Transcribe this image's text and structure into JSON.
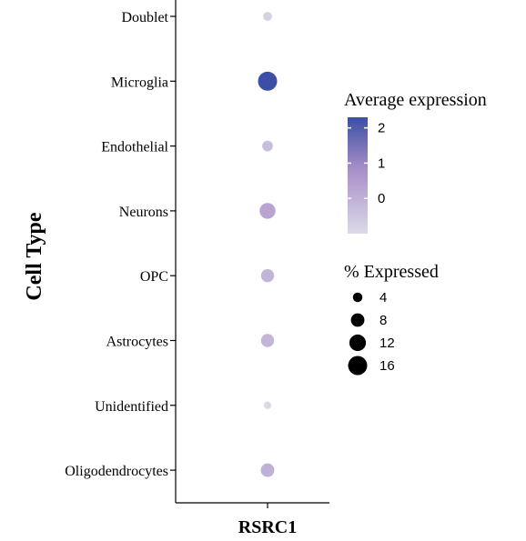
{
  "chart_data": {
    "type": "dot",
    "title": "",
    "xlabel": "RSRC1",
    "ylabel": "Cell Type",
    "x": [
      "RSRC1"
    ],
    "categories": [
      "Doublet",
      "Microglia",
      "Endothelial",
      "Neurons",
      "OPC",
      "Astrocytes",
      "Unidentified",
      "Oligodendrocytes"
    ],
    "series": [
      {
        "gene": "RSRC1",
        "percent_expressed": [
          3.5,
          16,
          5,
          11,
          7.5,
          7.5,
          2.5,
          8
        ],
        "average_expression": [
          -0.8,
          2.3,
          -0.3,
          0.3,
          -0.1,
          -0.1,
          -1.0,
          0.0
        ]
      }
    ],
    "color_legend": {
      "title": "Average expression",
      "ticks": [
        2,
        1,
        0
      ],
      "range": [
        -1.0,
        2.3
      ],
      "low_color": "#dcdae8",
      "mid_color": "#a88fc8",
      "high_color": "#3c4fa4"
    },
    "size_legend": {
      "title": "% Expressed",
      "ticks": [
        4,
        8,
        12,
        16
      ],
      "range": [
        0,
        16
      ]
    },
    "grid": false,
    "legend_position": "right"
  }
}
